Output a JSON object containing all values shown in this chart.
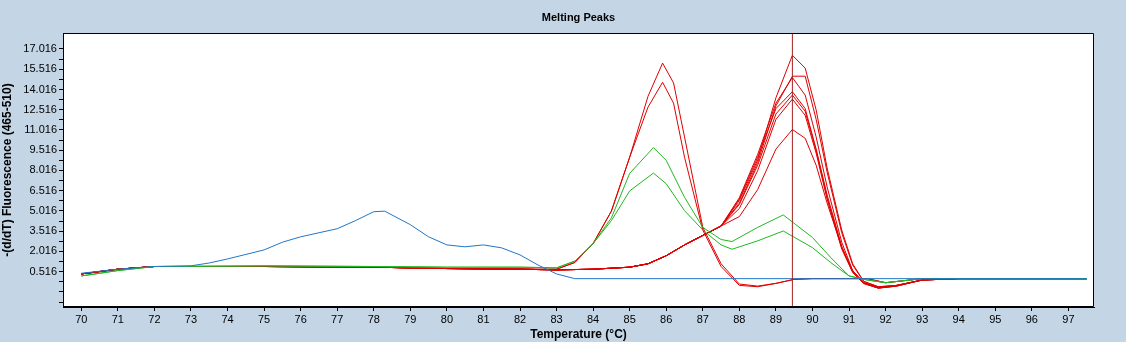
{
  "chart_data": {
    "type": "line",
    "title": "Melting Peaks",
    "xlabel": "Temperature (°C)",
    "ylabel": "-(d/dT) Fluorescence (465-510)",
    "xlim": [
      69.5,
      97.7
    ],
    "xticks": [
      70,
      71,
      72,
      73,
      74,
      75,
      76,
      77,
      78,
      79,
      80,
      81,
      82,
      83,
      84,
      85,
      86,
      87,
      88,
      89,
      90,
      91,
      92,
      93,
      94,
      95,
      96,
      97
    ],
    "ylim": [
      -2.1,
      18.2
    ],
    "yticks": [
      {
        "value": -1.734,
        "label": null
      },
      {
        "value": -0.984,
        "label": null
      },
      {
        "value": -0.234,
        "label": null
      },
      0.516,
      {
        "value": 1.266,
        "label": null
      },
      2.016,
      {
        "value": 2.766,
        "label": null
      },
      3.516,
      {
        "value": 4.266,
        "label": null
      },
      5.016,
      {
        "value": 5.766,
        "label": null
      },
      6.516,
      {
        "value": 7.266,
        "label": null
      },
      8.016,
      {
        "value": 8.766,
        "label": null
      },
      9.516,
      {
        "value": 10.266,
        "label": null
      },
      11.016,
      {
        "value": 11.766,
        "label": null
      },
      12.516,
      {
        "value": 13.266,
        "label": null
      },
      14.016,
      {
        "value": 14.766,
        "label": null
      },
      15.516,
      {
        "value": 16.266,
        "label": null
      },
      17.016
    ],
    "grid": false,
    "legend": false,
    "marker": "none",
    "line_style": "solid",
    "ref_lines": [
      {
        "axis": "x",
        "value": 89.45,
        "color": "#a52020"
      }
    ],
    "series": [
      {
        "color": "#1f78c8",
        "x": [
          70,
          71,
          72,
          73,
          73.5,
          74,
          75,
          75.5,
          76,
          77,
          77.5,
          78,
          78.3,
          79,
          79.5,
          80,
          80.5,
          81,
          81.5,
          82,
          82.5,
          83,
          83.5,
          88,
          97.5
        ],
        "values": [
          0.4,
          0.7,
          0.9,
          0.95,
          1.16,
          1.46,
          2.13,
          2.7,
          3.1,
          3.7,
          4.3,
          4.96,
          5.0,
          4.0,
          3.1,
          2.5,
          2.36,
          2.5,
          2.28,
          1.76,
          1.0,
          0.35,
          0,
          0,
          0
        ]
      },
      {
        "color": "#22b822",
        "x": [
          70,
          71,
          72,
          75,
          78,
          80,
          82,
          83,
          83.5,
          84,
          84.5,
          85,
          85.65,
          86,
          86.5,
          87,
          87.5,
          87.8,
          88.5,
          89.2,
          90,
          90.5,
          91,
          91.5,
          92,
          93,
          97.5
        ],
        "values": [
          0.2,
          0.6,
          0.9,
          0.95,
          0.9,
          0.85,
          0.85,
          0.8,
          1.3,
          2.6,
          4.5,
          7.8,
          9.71,
          8.76,
          6.03,
          3.8,
          2.9,
          2.75,
          3.8,
          4.72,
          3.05,
          1.56,
          0.2,
          -0.1,
          -0.3,
          0,
          0
        ]
      },
      {
        "color": "#22b822",
        "x": [
          70,
          71,
          72,
          75,
          78,
          80,
          82,
          83,
          83.5,
          84,
          84.5,
          85,
          85.65,
          86,
          86.5,
          87,
          87.5,
          87.8,
          88.5,
          89.2,
          90,
          90.5,
          91,
          91.5,
          92,
          93,
          97.5
        ],
        "values": [
          0.2,
          0.6,
          0.9,
          0.95,
          0.9,
          0.85,
          0.85,
          0.8,
          1.3,
          2.6,
          4.3,
          6.5,
          7.82,
          7.03,
          5.04,
          3.6,
          2.5,
          2.18,
          2.8,
          3.53,
          2.3,
          1.19,
          0.2,
          -0.1,
          -0.3,
          0,
          0
        ]
      },
      {
        "color": "#e00000",
        "x": [
          70,
          71,
          72,
          75,
          78,
          80,
          82,
          83,
          83.5,
          84,
          84.5,
          85,
          85.5,
          85.9,
          86.2,
          86.5,
          87,
          87.5,
          88,
          88.5,
          89,
          89.5,
          90,
          91.5,
          92,
          93,
          97.5
        ],
        "values": [
          0.35,
          0.7,
          0.9,
          0.9,
          0.85,
          0.75,
          0.7,
          0.7,
          1.2,
          2.6,
          5.0,
          9.0,
          13.5,
          15.97,
          14.5,
          10.5,
          3.8,
          1.1,
          -0.4,
          -0.55,
          -0.35,
          -0.05,
          0,
          0,
          -0.3,
          0,
          0
        ]
      },
      {
        "color": "#e00000",
        "x": [
          70,
          71,
          72,
          75,
          78,
          80,
          82,
          83,
          83.5,
          84,
          84.5,
          85,
          85.5,
          85.9,
          86.2,
          86.5,
          87,
          87.5,
          88,
          88.5,
          89,
          89.5,
          90,
          91.5,
          92,
          93,
          97.5
        ],
        "values": [
          0.35,
          0.7,
          0.9,
          0.9,
          0.85,
          0.75,
          0.7,
          0.7,
          1.2,
          2.6,
          5.0,
          9.0,
          12.7,
          14.55,
          13.0,
          9.0,
          3.6,
          0.9,
          -0.5,
          -0.6,
          -0.35,
          -0.05,
          0,
          0,
          -0.3,
          0,
          0
        ]
      },
      {
        "color": "#e00000",
        "x": [
          70,
          71,
          72,
          75,
          78,
          80,
          82,
          83,
          84,
          85,
          85.5,
          86,
          86.5,
          87,
          87.5,
          88,
          88.5,
          89,
          89.45,
          89.8,
          90.1,
          90.4,
          90.8,
          91.1,
          91.4,
          91.8,
          92.3,
          93,
          94,
          97.5
        ],
        "values": [
          0.35,
          0.7,
          0.9,
          0.9,
          0.85,
          0.75,
          0.7,
          0.65,
          0.7,
          0.85,
          1.1,
          1.7,
          2.5,
          3.2,
          3.9,
          5.8,
          8.8,
          13.4,
          16.55,
          15.6,
          12.5,
          8.2,
          3.6,
          1.1,
          -0.2,
          -0.6,
          -0.5,
          -0.1,
          0,
          0
        ]
      },
      {
        "color": "#e00000",
        "x": [
          70,
          71,
          72,
          75,
          78,
          80,
          82,
          83,
          84,
          85,
          85.5,
          86,
          86.5,
          87,
          87.5,
          88,
          88.5,
          89,
          89.45,
          89.8,
          90.1,
          90.4,
          90.8,
          91.1,
          91.4,
          91.8,
          92.3,
          93,
          94,
          97.5
        ],
        "values": [
          0.35,
          0.7,
          0.9,
          0.9,
          0.85,
          0.75,
          0.7,
          0.65,
          0.7,
          0.85,
          1.1,
          1.7,
          2.5,
          3.2,
          3.9,
          5.6,
          8.6,
          12.8,
          15.0,
          15.0,
          11.8,
          7.9,
          3.4,
          1.0,
          -0.2,
          -0.6,
          -0.5,
          -0.1,
          0,
          0
        ]
      },
      {
        "color": "#e00000",
        "x": [
          70,
          71,
          72,
          75,
          78,
          80,
          82,
          83,
          84,
          85,
          85.5,
          86,
          86.5,
          87,
          87.5,
          88,
          88.5,
          89,
          89.45,
          89.8,
          90.1,
          90.4,
          90.8,
          91.1,
          91.4,
          91.8,
          92.3,
          93,
          94,
          97.5
        ],
        "values": [
          0.35,
          0.7,
          0.9,
          0.9,
          0.85,
          0.75,
          0.7,
          0.65,
          0.7,
          0.85,
          1.1,
          1.7,
          2.5,
          3.2,
          3.9,
          6.0,
          9.2,
          13.0,
          14.9,
          13.6,
          10.5,
          6.8,
          2.7,
          0.6,
          -0.3,
          -0.65,
          -0.5,
          -0.1,
          0,
          0
        ]
      },
      {
        "color": "#e00000",
        "x": [
          70,
          71,
          72,
          75,
          78,
          80,
          82,
          83,
          84,
          85,
          85.5,
          86,
          86.5,
          87,
          87.5,
          88,
          88.5,
          89,
          89.45,
          89.8,
          90.1,
          90.4,
          90.8,
          91.1,
          91.4,
          91.8,
          92.3,
          93,
          94,
          97.5
        ],
        "values": [
          0.35,
          0.7,
          0.9,
          0.9,
          0.85,
          0.75,
          0.7,
          0.65,
          0.7,
          0.85,
          1.1,
          1.7,
          2.5,
          3.2,
          3.9,
          5.9,
          9.0,
          12.6,
          13.85,
          12.6,
          9.6,
          6.2,
          2.4,
          0.5,
          -0.35,
          -0.7,
          -0.55,
          -0.1,
          0,
          0
        ]
      },
      {
        "color": "#e00000",
        "x": [
          70,
          71,
          72,
          75,
          78,
          80,
          82,
          83,
          84,
          85,
          85.5,
          86,
          86.5,
          87,
          87.5,
          88,
          88.5,
          89,
          89.45,
          89.8,
          90.1,
          90.4,
          90.8,
          91.1,
          91.4,
          91.8,
          92.3,
          93,
          94,
          97.5
        ],
        "values": [
          0.35,
          0.7,
          0.9,
          0.9,
          0.85,
          0.75,
          0.7,
          0.65,
          0.7,
          0.85,
          1.1,
          1.7,
          2.5,
          3.2,
          3.9,
          5.5,
          8.4,
          12.2,
          13.6,
          12.4,
          9.5,
          6.0,
          2.3,
          0.5,
          -0.35,
          -0.7,
          -0.55,
          -0.1,
          0,
          0
        ]
      },
      {
        "color": "#e00000",
        "x": [
          70,
          71,
          72,
          75,
          78,
          80,
          82,
          83,
          84,
          85,
          85.5,
          86,
          86.5,
          87,
          87.5,
          88,
          88.5,
          89,
          89.45,
          89.8,
          90.1,
          90.4,
          90.8,
          91.1,
          91.4,
          91.8,
          92.3,
          93,
          94,
          97.5
        ],
        "values": [
          0.35,
          0.7,
          0.9,
          0.9,
          0.85,
          0.75,
          0.7,
          0.65,
          0.7,
          0.85,
          1.1,
          1.7,
          2.5,
          3.2,
          3.9,
          5.2,
          8.0,
          11.8,
          13.3,
          12.1,
          9.3,
          5.9,
          2.2,
          0.45,
          -0.35,
          -0.7,
          -0.55,
          -0.1,
          0,
          0
        ]
      },
      {
        "color": "#e00000",
        "x": [
          70,
          71,
          72,
          75,
          78,
          80,
          82,
          83,
          84,
          85,
          85.5,
          86,
          86.5,
          87,
          87.5,
          88,
          88.5,
          89,
          89.45,
          89.8,
          90.1,
          90.4,
          90.8,
          91.1,
          91.4,
          91.8,
          92.3,
          93,
          94,
          97.5
        ],
        "values": [
          0.35,
          0.7,
          0.9,
          0.9,
          0.85,
          0.75,
          0.7,
          0.65,
          0.7,
          0.85,
          1.1,
          1.7,
          2.5,
          3.2,
          3.9,
          4.6,
          6.6,
          9.6,
          11.05,
          10.4,
          8.4,
          5.6,
          2.3,
          0.6,
          -0.3,
          -0.65,
          -0.5,
          -0.1,
          0,
          0
        ]
      }
    ]
  }
}
